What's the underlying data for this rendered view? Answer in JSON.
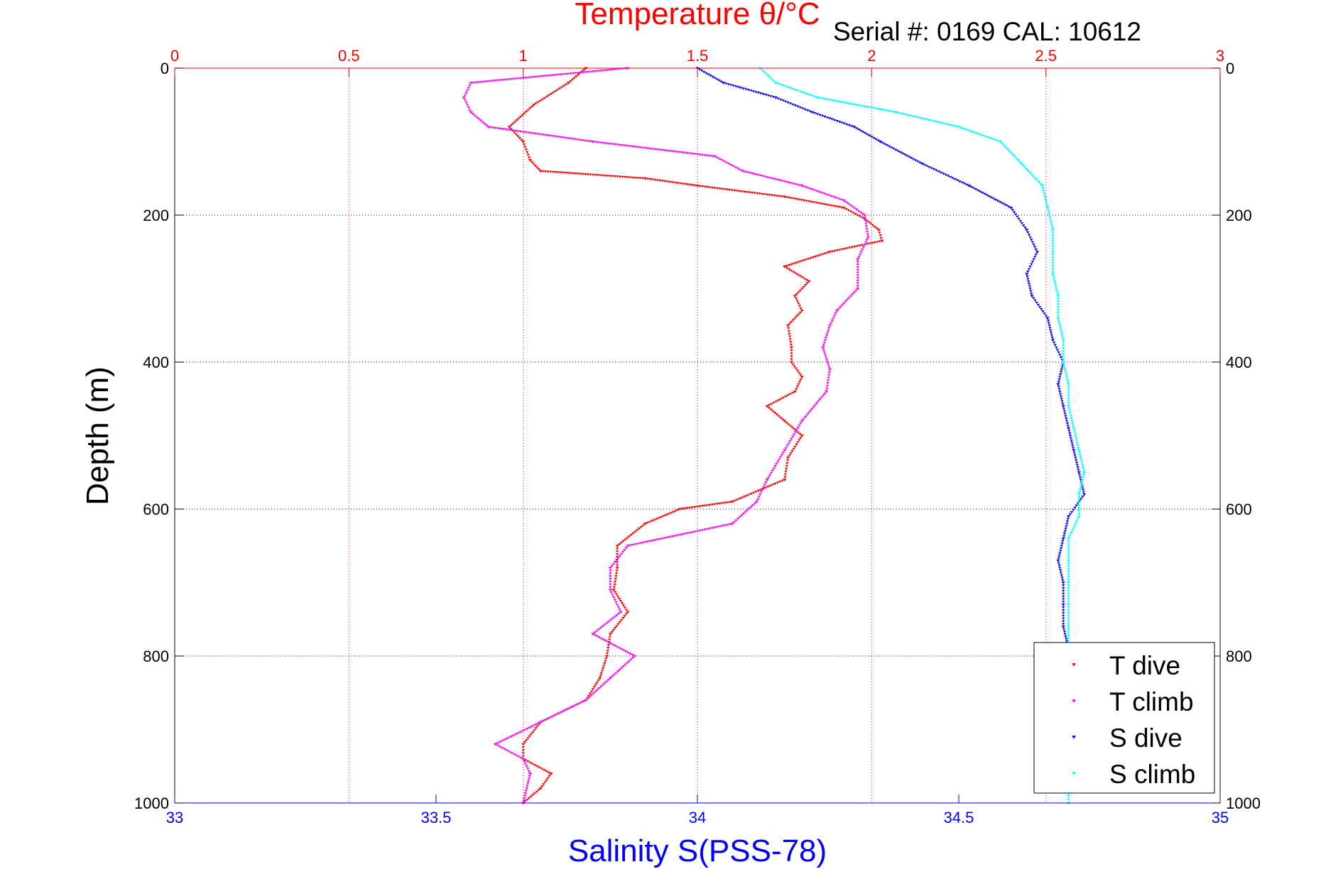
{
  "chart_data": {
    "type": "scatter",
    "title": "Temperature θ/°C",
    "subtitle": "Serial #: 0169 CAL: 10612",
    "xlabel_top": "Temperature θ/°C",
    "xlabel_bottom": "Salinity S(PSS-78)",
    "ylabel": "Depth (m)",
    "ylim": [
      0,
      1000
    ],
    "y_reversed": true,
    "xlim_temperature": [
      0,
      3
    ],
    "xlim_salinity": [
      33,
      35
    ],
    "yticks": [
      "0",
      "200",
      "400",
      "600",
      "800",
      "1000"
    ],
    "xticks_temperature": [
      "0",
      "0.5",
      "1",
      "1.5",
      "2",
      "2.5",
      "3"
    ],
    "xticks_salinity": [
      "33",
      "33.5",
      "34",
      "34.5",
      "35"
    ],
    "grid": true,
    "legend_position": "bottom-right",
    "colors": {
      "temperature_axis": "#ff0000",
      "salinity_axis": "#0000ff",
      "t_dive": "#ff0000",
      "t_climb": "#ff00ff",
      "s_dive": "#0000ff",
      "s_climb": "#00ffff"
    },
    "series": [
      {
        "name": "T dive",
        "axis": "temperature",
        "color": "#ff0000",
        "depth": [
          0,
          20,
          50,
          80,
          100,
          125,
          140,
          150,
          160,
          175,
          190,
          205,
          220,
          235,
          250,
          270,
          290,
          310,
          330,
          350,
          380,
          400,
          420,
          440,
          460,
          480,
          500,
          530,
          560,
          590,
          600,
          620,
          650,
          680,
          710,
          740,
          770,
          800,
          830,
          860,
          890,
          920,
          940,
          960,
          980,
          1000
        ],
        "values": [
          1.18,
          1.13,
          1.03,
          0.96,
          1.0,
          1.02,
          1.05,
          1.35,
          1.5,
          1.75,
          1.92,
          1.98,
          2.02,
          2.03,
          1.88,
          1.75,
          1.82,
          1.78,
          1.8,
          1.76,
          1.77,
          1.77,
          1.8,
          1.78,
          1.7,
          1.75,
          1.8,
          1.76,
          1.75,
          1.6,
          1.45,
          1.35,
          1.27,
          1.27,
          1.26,
          1.3,
          1.25,
          1.24,
          1.22,
          1.18,
          1.05,
          1.0,
          1.0,
          1.08,
          1.05,
          1.0
        ]
      },
      {
        "name": "T climb",
        "axis": "temperature",
        "color": "#ff00ff",
        "depth": [
          0,
          20,
          40,
          60,
          80,
          100,
          120,
          140,
          160,
          180,
          200,
          230,
          260,
          300,
          330,
          350,
          380,
          410,
          440,
          480,
          520,
          560,
          590,
          620,
          650,
          680,
          710,
          740,
          770,
          800,
          830,
          860,
          890,
          920,
          940,
          960,
          1000
        ],
        "values": [
          1.3,
          0.85,
          0.83,
          0.85,
          0.9,
          1.2,
          1.55,
          1.63,
          1.8,
          1.92,
          1.98,
          1.99,
          1.96,
          1.96,
          1.9,
          1.88,
          1.86,
          1.88,
          1.87,
          1.8,
          1.75,
          1.7,
          1.67,
          1.6,
          1.3,
          1.25,
          1.25,
          1.28,
          1.2,
          1.32,
          1.25,
          1.18,
          1.05,
          0.92,
          1.0,
          1.02,
          1.0
        ]
      },
      {
        "name": "S dive",
        "axis": "salinity",
        "color": "#0000ff",
        "depth": [
          0,
          20,
          40,
          60,
          80,
          100,
          130,
          160,
          190,
          220,
          250,
          280,
          310,
          340,
          370,
          400,
          430,
          460,
          490,
          520,
          550,
          580,
          610,
          640,
          670,
          700,
          730,
          760,
          790,
          800
        ],
        "values": [
          34.0,
          34.05,
          34.15,
          34.22,
          34.3,
          34.35,
          34.43,
          34.52,
          34.6,
          34.63,
          34.65,
          34.63,
          34.64,
          34.67,
          34.68,
          34.7,
          34.69,
          34.7,
          34.71,
          34.72,
          34.73,
          34.74,
          34.71,
          34.7,
          34.69,
          34.7,
          34.7,
          34.7,
          34.71,
          34.71
        ]
      },
      {
        "name": "S climb",
        "axis": "salinity",
        "color": "#00ffff",
        "depth": [
          0,
          20,
          40,
          60,
          80,
          100,
          130,
          160,
          190,
          220,
          250,
          280,
          310,
          340,
          370,
          400,
          430,
          460,
          490,
          520,
          550,
          580,
          610,
          640,
          670,
          700,
          730,
          760,
          790,
          830,
          870,
          910,
          950,
          990,
          1000
        ],
        "values": [
          34.12,
          34.15,
          34.23,
          34.38,
          34.5,
          34.58,
          34.62,
          34.66,
          34.67,
          34.68,
          34.68,
          34.68,
          34.69,
          34.69,
          34.7,
          34.7,
          34.71,
          34.71,
          34.72,
          34.73,
          34.74,
          34.73,
          34.73,
          34.71,
          34.71,
          34.71,
          34.71,
          34.71,
          34.71,
          34.71,
          34.71,
          34.71,
          34.71,
          34.71,
          34.71
        ]
      }
    ]
  }
}
